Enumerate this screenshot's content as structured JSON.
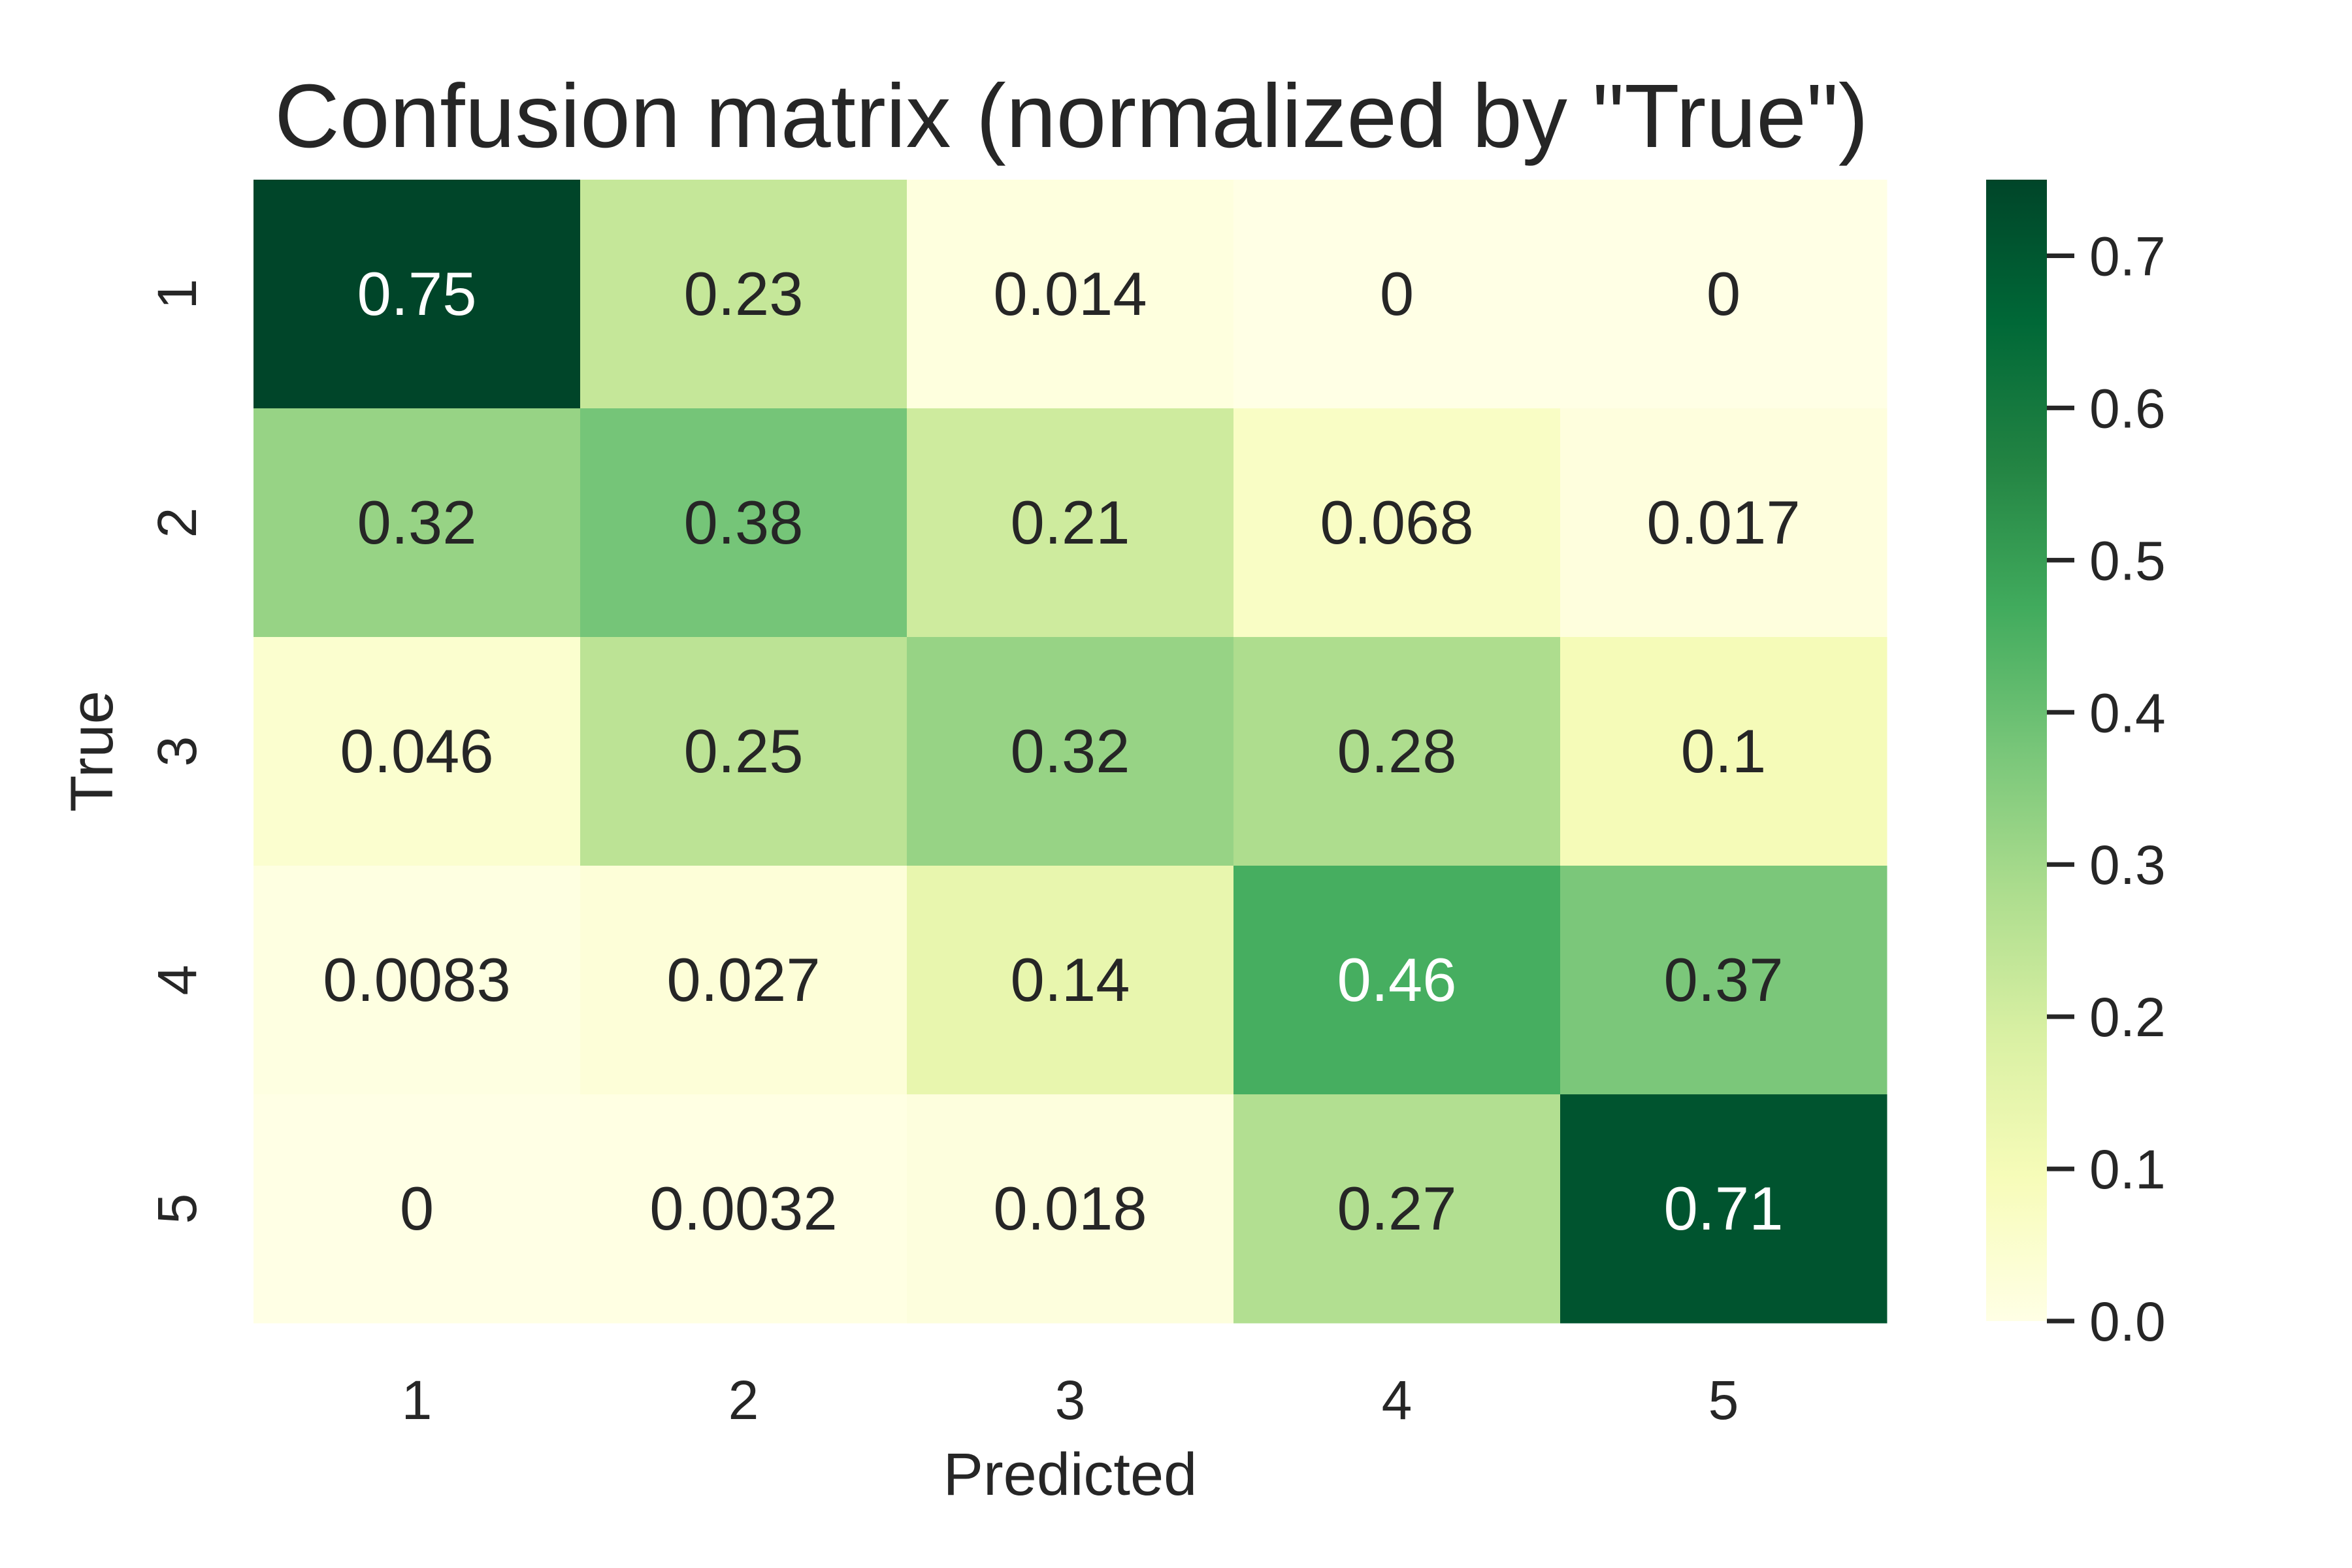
{
  "chart_data": {
    "type": "heatmap",
    "title": "Confusion matrix (normalized by \"True\")",
    "xlabel": "Predicted",
    "ylabel": "True",
    "x_categories": [
      "1",
      "2",
      "3",
      "4",
      "5"
    ],
    "y_categories": [
      "1",
      "2",
      "3",
      "4",
      "5"
    ],
    "values": [
      [
        0.75,
        0.23,
        0.014,
        0,
        0
      ],
      [
        0.32,
        0.38,
        0.21,
        0.068,
        0.017
      ],
      [
        0.046,
        0.25,
        0.32,
        0.28,
        0.1
      ],
      [
        0.0083,
        0.027,
        0.14,
        0.46,
        0.37
      ],
      [
        0,
        0.0032,
        0.018,
        0.27,
        0.71
      ]
    ],
    "cell_labels": [
      [
        "0.75",
        "0.23",
        "0.014",
        "0",
        "0"
      ],
      [
        "0.32",
        "0.38",
        "0.21",
        "0.068",
        "0.017"
      ],
      [
        "0.046",
        "0.25",
        "0.32",
        "0.28",
        "0.1"
      ],
      [
        "0.0083",
        "0.027",
        "0.14",
        "0.46",
        "0.37"
      ],
      [
        "0",
        "0.0032",
        "0.018",
        "0.27",
        "0.71"
      ]
    ],
    "colorbar": {
      "vmin": 0,
      "vmax": 0.75,
      "ticks": [
        0.0,
        0.1,
        0.2,
        0.3,
        0.4,
        0.5,
        0.6,
        0.7
      ],
      "tick_labels": [
        "0.0",
        "0.1",
        "0.2",
        "0.3",
        "0.4",
        "0.5",
        "0.6",
        "0.7"
      ]
    },
    "colormap": "YlGn",
    "colormap_stops": [
      "#ffffe5",
      "#f7fcb9",
      "#d9f0a3",
      "#addd8e",
      "#78c679",
      "#41ab5d",
      "#238443",
      "#006837",
      "#004529"
    ],
    "text_color_dark": "#262626",
    "text_color_light": "#ffffff",
    "grid": false
  }
}
